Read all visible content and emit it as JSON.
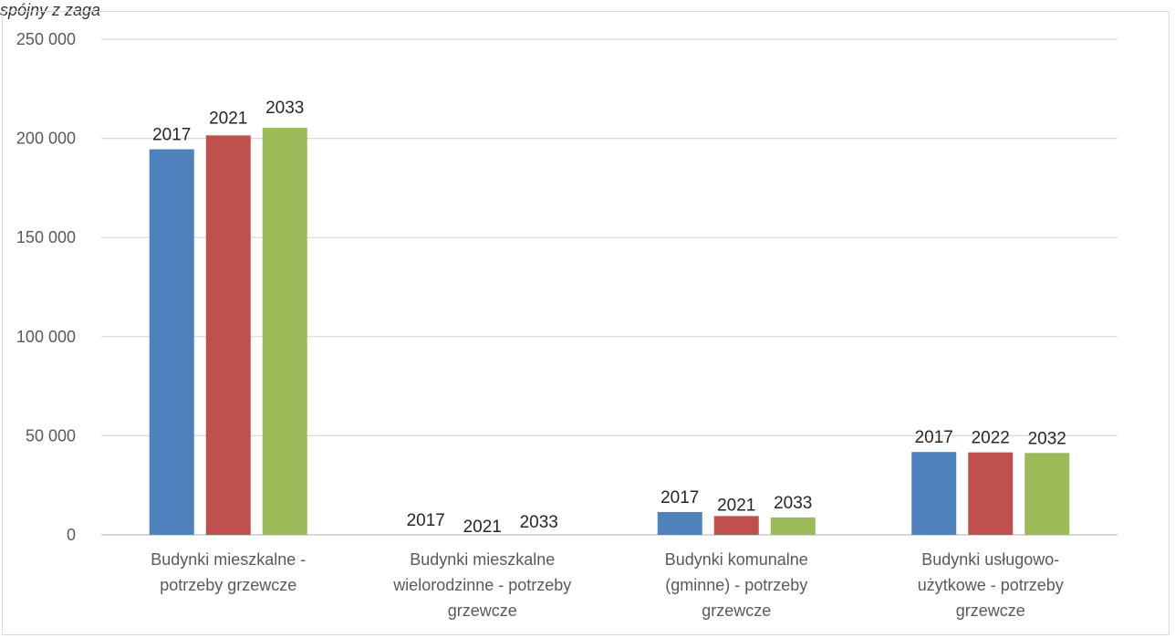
{
  "caption": "spójny z zaga",
  "chart_data": {
    "type": "bar",
    "categories": [
      [
        "Budynki mieszkalne -",
        "potrzeby grzewcze"
      ],
      [
        "Budynki mieszkalne",
        "wielorodzinne - potrzeby",
        "grzewcze"
      ],
      [
        "Budynki komunalne",
        "(gminne) - potrzeby",
        "grzewcze"
      ],
      [
        "Budynki usługowo-",
        "użytkowe - potrzeby",
        "grzewcze"
      ]
    ],
    "series": [
      {
        "color": "#4f81bd",
        "values": [
          194500,
          0,
          11500,
          41800
        ]
      },
      {
        "color": "#c0504d",
        "values": [
          201500,
          0,
          9500,
          41600
        ]
      },
      {
        "color": "#9bbb59",
        "values": [
          205300,
          0,
          8800,
          41300
        ]
      }
    ],
    "data_labels": [
      [
        "2017",
        "2021",
        "2033"
      ],
      [
        "2017",
        "2021",
        "2033"
      ],
      [
        "2017",
        "2021",
        "2033"
      ],
      [
        "2017",
        "2022",
        "2032"
      ]
    ],
    "y_ticks": [
      0,
      50000,
      100000,
      150000,
      200000,
      250000
    ],
    "y_tick_labels": [
      "0",
      "50 000",
      "100 000",
      "150 000",
      "200 000",
      "250 000"
    ],
    "ylim": [
      0,
      250000
    ],
    "grid": true,
    "legend": "none"
  }
}
